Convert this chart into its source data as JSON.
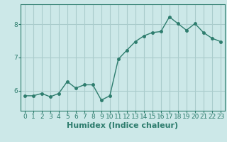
{
  "xlabel": "Humidex (Indice chaleur)",
  "x": [
    0,
    1,
    2,
    3,
    4,
    5,
    6,
    7,
    8,
    9,
    10,
    11,
    12,
    13,
    14,
    15,
    16,
    17,
    18,
    19,
    20,
    21,
    22,
    23
  ],
  "y": [
    5.85,
    5.85,
    5.92,
    5.82,
    5.92,
    6.28,
    6.08,
    6.18,
    6.18,
    5.72,
    5.85,
    6.95,
    7.22,
    7.48,
    7.65,
    7.75,
    7.78,
    8.22,
    8.02,
    7.82,
    8.02,
    7.75,
    7.58,
    7.48
  ],
  "line_color": "#2e7d6e",
  "marker": "o",
  "marker_size": 2.5,
  "bg_color": "#cce8e8",
  "grid_color": "#aacccc",
  "ylim": [
    5.4,
    8.6
  ],
  "xlim": [
    -0.5,
    23.5
  ],
  "yticks": [
    6,
    7,
    8
  ],
  "xticks": [
    0,
    1,
    2,
    3,
    4,
    5,
    6,
    7,
    8,
    9,
    10,
    11,
    12,
    13,
    14,
    15,
    16,
    17,
    18,
    19,
    20,
    21,
    22,
    23
  ],
  "tick_label_fontsize": 6.5,
  "xlabel_fontsize": 8,
  "linewidth": 1.0
}
